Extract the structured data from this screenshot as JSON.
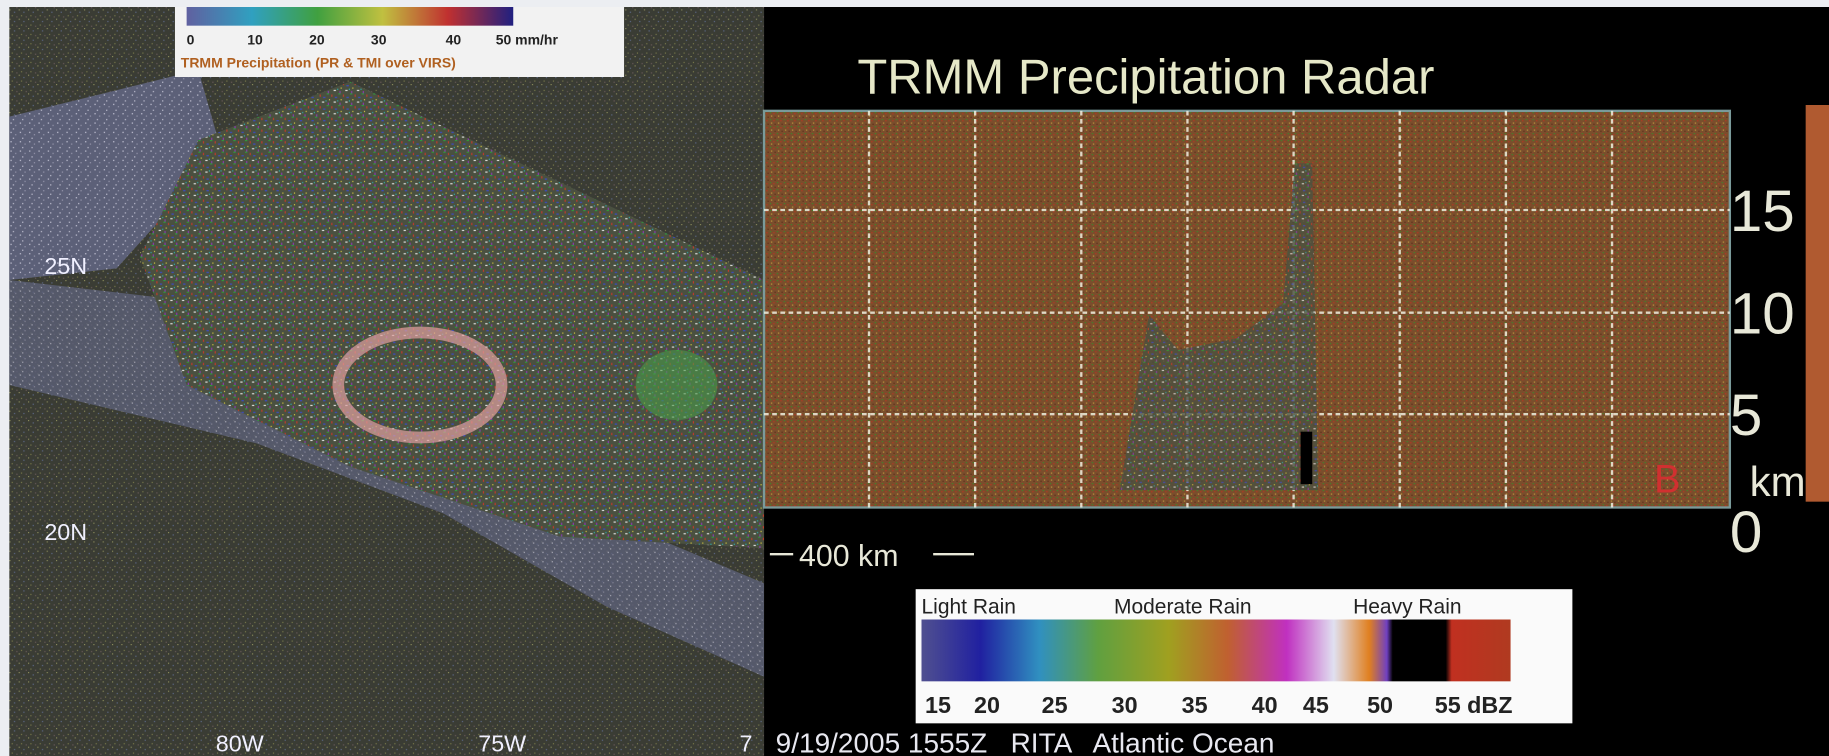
{
  "map": {
    "legend": {
      "ticks": [
        "0",
        "10",
        "20",
        "30",
        "40",
        "50 mm/hr"
      ],
      "caption": "TRMM Precipitation (PR & TMI over VIRS)"
    },
    "lat_labels": [
      "25N",
      "20N"
    ],
    "lon_labels": [
      "80W",
      "75W",
      "7"
    ]
  },
  "radar": {
    "title": "TRMM Precipitation Radar",
    "height_ticks": [
      "15",
      "10",
      "5",
      "0"
    ],
    "height_unit": "km",
    "endpoint_b": "B",
    "scale_bar": "400 km",
    "legend": {
      "categories": [
        "Light Rain",
        "Moderate Rain",
        "Heavy Rain"
      ],
      "ticks": [
        "15",
        "20",
        "25",
        "30",
        "35",
        "40",
        "45",
        "50",
        "55 dBZ"
      ]
    }
  },
  "footer": "9/19/2005 1555Z   RITA   Atlantic Ocean"
}
